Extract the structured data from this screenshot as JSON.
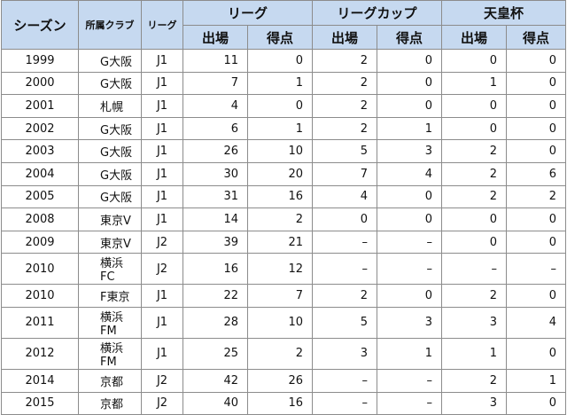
{
  "header": {
    "season": "シーズン",
    "club": "所属クラブ",
    "league": "リーグ",
    "group_league": "リーグ",
    "group_cup": "リーグカップ",
    "group_emperor": "天皇杯",
    "apps": "出場",
    "goals": "得点"
  },
  "rows": [
    [
      "1999",
      "G大阪",
      "J1",
      "11",
      "0",
      "2",
      "0",
      "0",
      "0"
    ],
    [
      "2000",
      "G大阪",
      "J1",
      "7",
      "1",
      "2",
      "0",
      "1",
      "0"
    ],
    [
      "2001",
      "札幌",
      "J1",
      "4",
      "0",
      "2",
      "0",
      "0",
      "0"
    ],
    [
      "2002",
      "G大阪",
      "J1",
      "6",
      "1",
      "2",
      "1",
      "0",
      "0"
    ],
    [
      "2003",
      "G大阪",
      "J1",
      "26",
      "10",
      "5",
      "3",
      "2",
      "0"
    ],
    [
      "2004",
      "G大阪",
      "J1",
      "30",
      "20",
      "7",
      "4",
      "2",
      "6"
    ],
    [
      "2005",
      "G大阪",
      "J1",
      "31",
      "16",
      "4",
      "0",
      "2",
      "2"
    ],
    [
      "2008",
      "東京V",
      "J1",
      "14",
      "2",
      "0",
      "0",
      "0",
      "0"
    ],
    [
      "2009",
      "東京V",
      "J2",
      "39",
      "21",
      "–",
      "–",
      "0",
      "0"
    ],
    [
      "2010",
      "横浜 FC",
      "J2",
      "16",
      "12",
      "–",
      "–",
      "–",
      "–"
    ],
    [
      "2010",
      "F東京",
      "J1",
      "22",
      "7",
      "2",
      "0",
      "2",
      "0"
    ],
    [
      "2011",
      "横浜 FM",
      "J1",
      "28",
      "10",
      "5",
      "3",
      "3",
      "4"
    ],
    [
      "2012",
      "横浜 FM",
      "J1",
      "25",
      "2",
      "3",
      "1",
      "1",
      "0"
    ],
    [
      "2014",
      "京都",
      "J2",
      "42",
      "26",
      "–",
      "–",
      "2",
      "1"
    ],
    [
      "2015",
      "京都",
      "J2",
      "40",
      "16",
      "–",
      "–",
      "3",
      "0"
    ]
  ]
}
